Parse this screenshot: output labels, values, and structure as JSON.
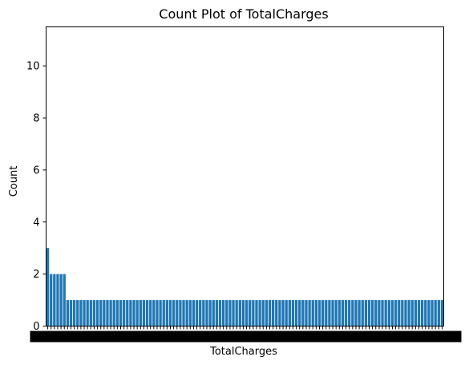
{
  "chart_data": {
    "type": "bar",
    "title": "Count Plot of TotalCharges",
    "xlabel": "TotalCharges",
    "ylabel": "Count",
    "ylim": [
      0,
      11.5
    ],
    "yticks": [
      "0",
      "2",
      "4",
      "6",
      "8",
      "10"
    ],
    "grid": false,
    "bar_color": "#1f77b4",
    "values": [
      3,
      2,
      2,
      2,
      2,
      2,
      1,
      1,
      1,
      1,
      1,
      1,
      1,
      1,
      1,
      1,
      1,
      1,
      1,
      1,
      1,
      1,
      1,
      1,
      1,
      1,
      1,
      1,
      1,
      1,
      1,
      1,
      1,
      1,
      1,
      1,
      1,
      1,
      1,
      1,
      1,
      1,
      1,
      1,
      1,
      1,
      1,
      1,
      1,
      1,
      1,
      1,
      1,
      1,
      1,
      1,
      1,
      1,
      1,
      1,
      1,
      1,
      1,
      1,
      1,
      1,
      1,
      1,
      1,
      1,
      1,
      1,
      1,
      1,
      1,
      1,
      1,
      1,
      1,
      1,
      1,
      1,
      1,
      1,
      1,
      1,
      1,
      1,
      1,
      1,
      1,
      1,
      1,
      1,
      1,
      1,
      1,
      1,
      1,
      1,
      1,
      1,
      1,
      1,
      1,
      1,
      1,
      1,
      1,
      1,
      1,
      1,
      1,
      1,
      1,
      1,
      1,
      1,
      1,
      1
    ],
    "x_tick_labels_note": "x tick labels are overlapping and illegible"
  }
}
